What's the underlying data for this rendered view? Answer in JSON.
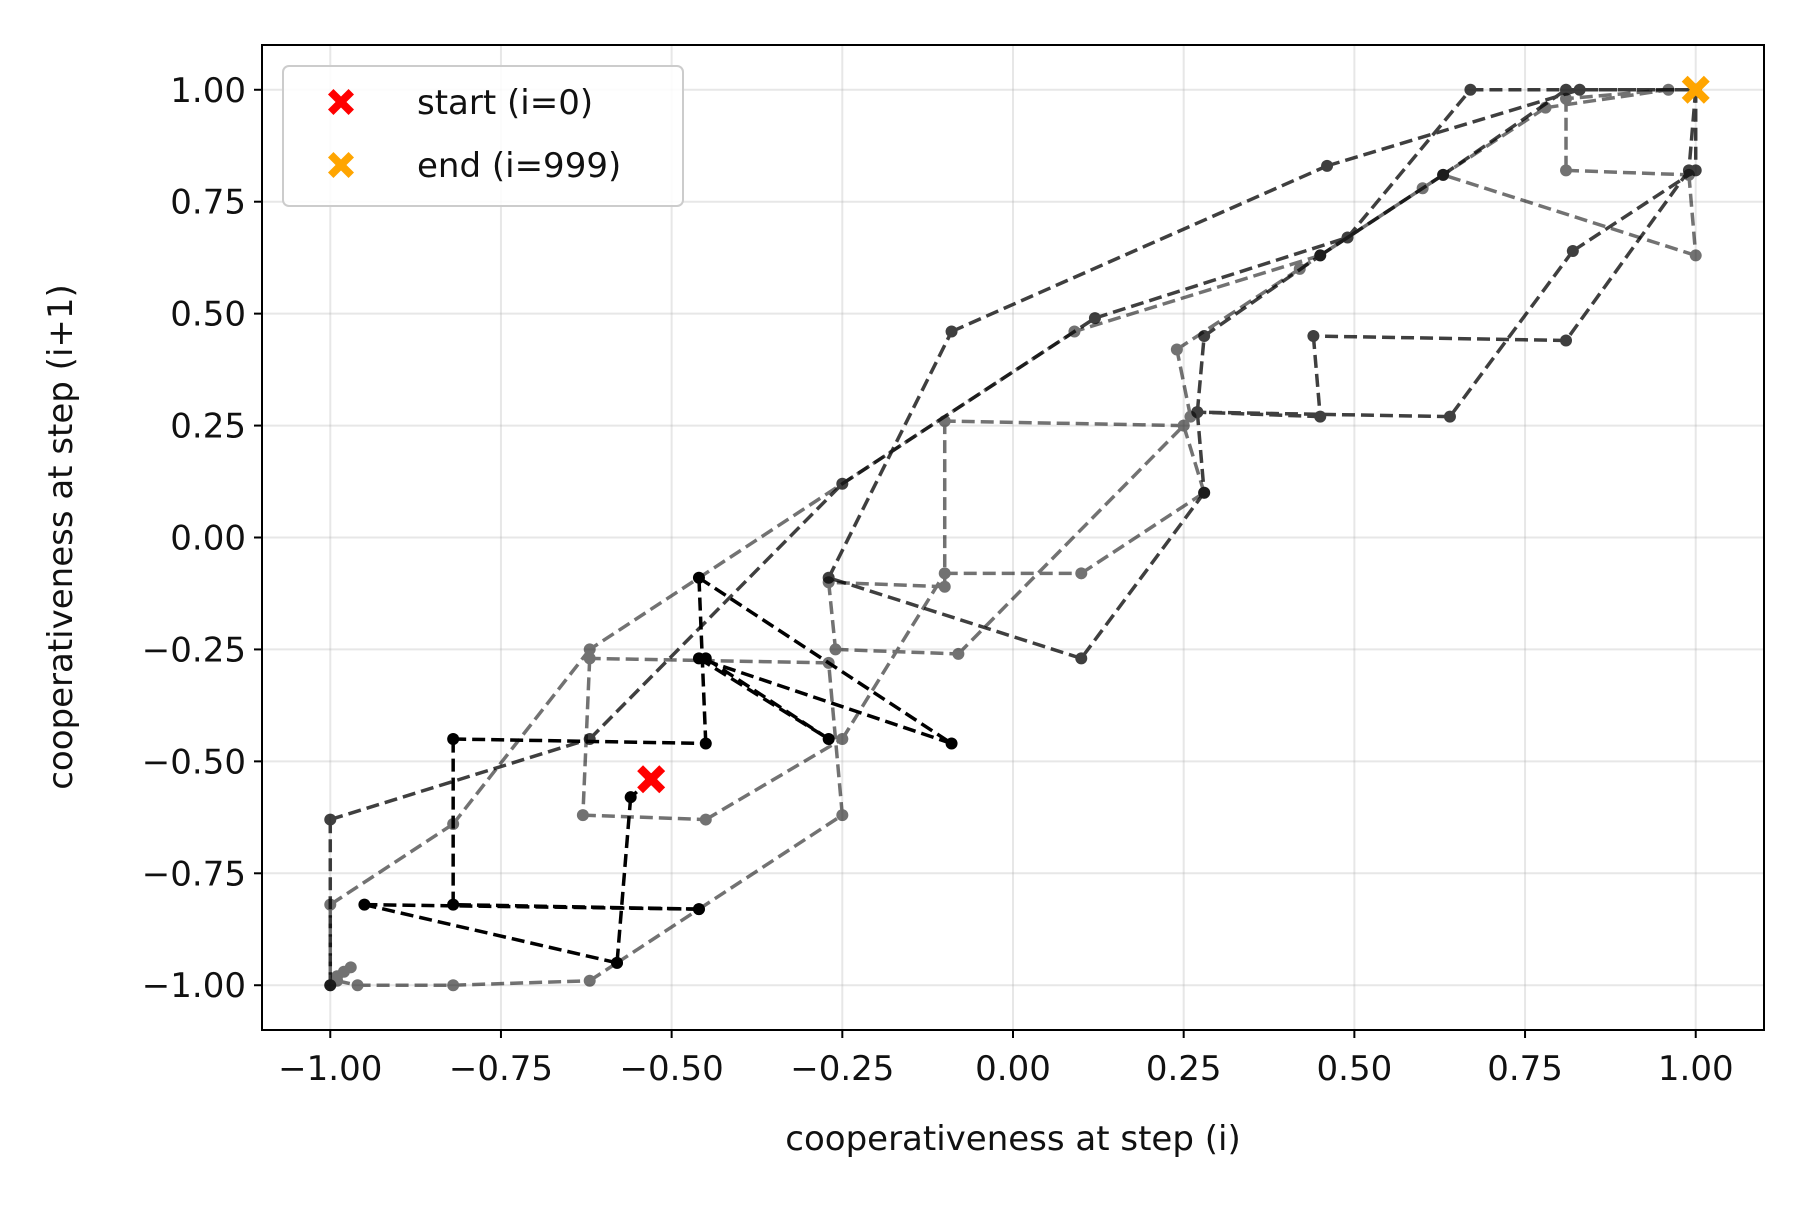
{
  "chart_data": {
    "type": "line",
    "title": "",
    "xlabel": "cooperativeness at step (i)",
    "ylabel": "cooperativeness at step (i+1)",
    "xlim": [
      -1.1,
      1.1
    ],
    "ylim": [
      -1.1,
      1.1
    ],
    "xticks": [
      -1.0,
      -0.75,
      -0.5,
      -0.25,
      0.0,
      0.25,
      0.5,
      0.75,
      1.0
    ],
    "yticks": [
      -1.0,
      -0.75,
      -0.5,
      -0.25,
      0.0,
      0.25,
      0.5,
      0.75,
      1.0
    ],
    "xtick_labels": [
      "−1.00",
      "−0.75",
      "−0.50",
      "−0.25",
      "0.00",
      "0.25",
      "0.50",
      "0.75",
      "1.00"
    ],
    "ytick_labels": [
      "−1.00",
      "−0.75",
      "−0.50",
      "−0.25",
      "0.00",
      "0.25",
      "0.50",
      "0.75",
      "1.00"
    ],
    "grid": true,
    "legend_position": "top-left",
    "legend": [
      {
        "label": "start (i=0)",
        "color": "#ff0000",
        "marker": "X"
      },
      {
        "label": "end (i=999)",
        "color": "#ffa500",
        "marker": "X"
      }
    ],
    "line_color": "#000000",
    "line_style": "dashed",
    "start_point": {
      "x": -0.53,
      "y": -0.54
    },
    "end_point": {
      "x": 1.0,
      "y": 1.0
    },
    "series": [
      {
        "alpha": 1.0,
        "points": [
          [
            -0.53,
            -0.54
          ],
          [
            -0.56,
            -0.58
          ],
          [
            -0.58,
            -0.95
          ],
          [
            -0.95,
            -0.82
          ],
          [
            -0.46,
            -0.83
          ],
          [
            -0.82,
            -0.82
          ],
          [
            -0.82,
            -0.45
          ],
          [
            -0.45,
            -0.46
          ],
          [
            -0.46,
            -0.09
          ],
          [
            -0.09,
            -0.46
          ],
          [
            -0.46,
            -0.27
          ],
          [
            -0.27,
            -0.45
          ],
          [
            -0.45,
            -0.27
          ]
        ]
      },
      {
        "alpha": 0.75,
        "points": [
          [
            -1.0,
            -1.0
          ],
          [
            -1.0,
            -0.63
          ],
          [
            -0.62,
            -0.45
          ],
          [
            -0.25,
            0.12
          ],
          [
            0.12,
            0.49
          ],
          [
            0.49,
            0.67
          ],
          [
            0.67,
            1.0
          ],
          [
            1.0,
            1.0
          ],
          [
            1.0,
            0.82
          ],
          [
            0.82,
            0.64
          ],
          [
            0.64,
            0.27
          ],
          [
            0.27,
            0.28
          ],
          [
            0.28,
            0.1
          ],
          [
            0.1,
            -0.27
          ],
          [
            -0.27,
            -0.09
          ],
          [
            -0.09,
            0.46
          ],
          [
            0.46,
            0.83
          ],
          [
            0.83,
            1.0
          ],
          [
            1.0,
            1.0
          ],
          [
            0.99,
            0.82
          ],
          [
            0.81,
            0.44
          ],
          [
            0.44,
            0.45
          ],
          [
            0.45,
            0.27
          ],
          [
            0.27,
            0.28
          ],
          [
            0.28,
            0.45
          ],
          [
            0.45,
            0.63
          ],
          [
            0.63,
            0.81
          ],
          [
            0.81,
            1.0
          ],
          [
            1.0,
            1.0
          ]
        ]
      },
      {
        "alpha": 0.55,
        "points": [
          [
            -0.99,
            -0.98
          ],
          [
            -0.98,
            -0.97
          ],
          [
            -0.97,
            -0.96
          ],
          [
            -0.99,
            -0.99
          ],
          [
            -0.96,
            -1.0
          ],
          [
            -0.82,
            -1.0
          ],
          [
            -0.62,
            -0.99
          ],
          [
            -0.58,
            -0.95
          ],
          [
            -0.46,
            -0.83
          ],
          [
            -0.25,
            -0.62
          ],
          [
            -0.27,
            -0.28
          ],
          [
            -0.62,
            -0.27
          ],
          [
            -0.63,
            -0.62
          ],
          [
            -0.45,
            -0.63
          ],
          [
            -0.25,
            -0.45
          ],
          [
            -0.1,
            -0.08
          ],
          [
            0.1,
            -0.08
          ],
          [
            0.28,
            0.1
          ],
          [
            0.25,
            0.25
          ],
          [
            -0.1,
            0.26
          ],
          [
            -0.1,
            -0.11
          ],
          [
            -0.27,
            -0.1
          ],
          [
            -0.26,
            -0.25
          ],
          [
            -0.08,
            -0.26
          ],
          [
            0.25,
            0.25
          ],
          [
            0.26,
            0.27
          ],
          [
            0.24,
            0.42
          ],
          [
            0.42,
            0.6
          ],
          [
            0.6,
            0.78
          ],
          [
            0.78,
            0.96
          ],
          [
            0.96,
            1.0
          ],
          [
            0.81,
            0.98
          ],
          [
            0.81,
            0.82
          ],
          [
            0.99,
            0.81
          ],
          [
            1.0,
            0.63
          ],
          [
            0.63,
            0.81
          ],
          [
            0.45,
            0.63
          ],
          [
            0.09,
            0.46
          ],
          [
            -0.62,
            -0.25
          ],
          [
            -0.82,
            -0.64
          ],
          [
            -1.0,
            -0.82
          ],
          [
            -1.0,
            -1.0
          ]
        ]
      }
    ]
  }
}
